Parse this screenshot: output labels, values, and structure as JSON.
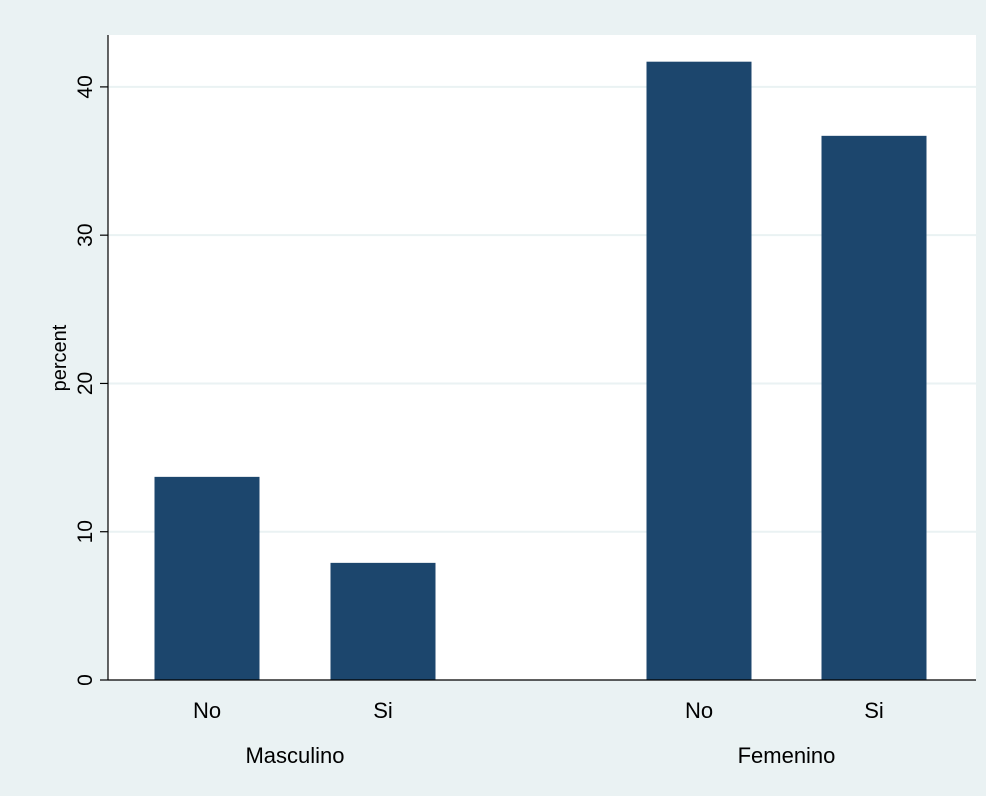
{
  "chart_data": {
    "type": "bar",
    "ylabel": "percent",
    "ylim": [
      0,
      43.5
    ],
    "yticks": [
      0,
      10,
      20,
      30,
      40
    ],
    "grid": true,
    "groups": [
      {
        "label": "Masculino",
        "categories": [
          "No",
          "Si"
        ],
        "values": [
          13.7,
          7.9
        ]
      },
      {
        "label": "Femenino",
        "categories": [
          "No",
          "Si"
        ],
        "values": [
          41.7,
          36.7
        ]
      }
    ],
    "colors": {
      "bar": "#1c466d",
      "background": "#eaf2f3",
      "plot_background": "#ffffff",
      "grid": "#eaf2f3"
    }
  }
}
